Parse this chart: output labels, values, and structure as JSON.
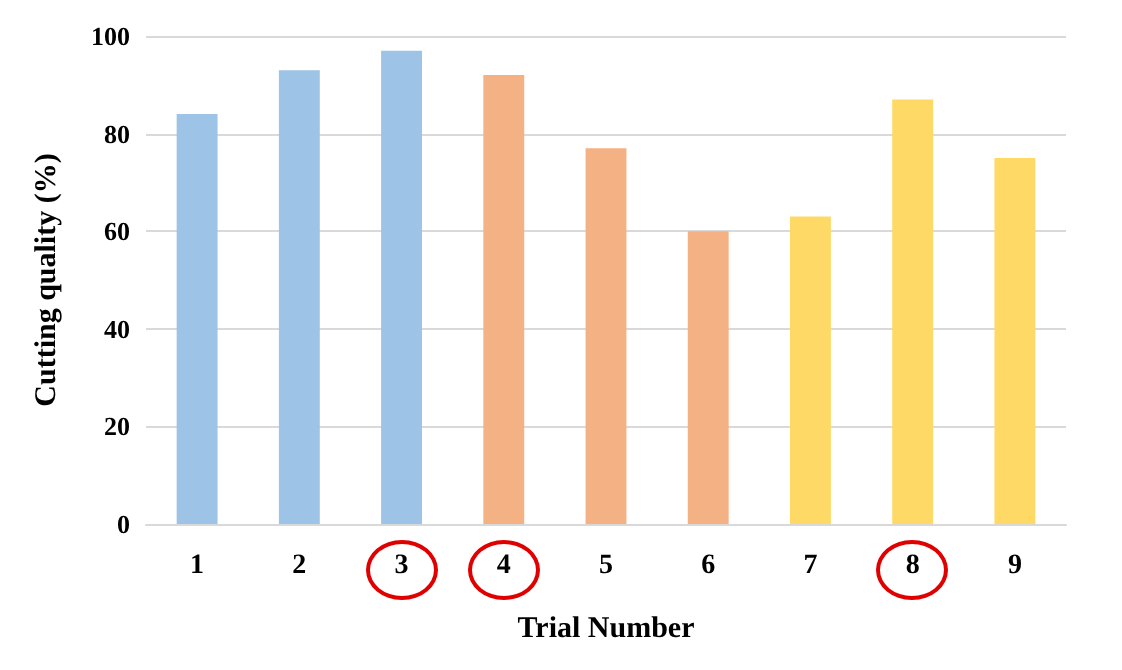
{
  "chart_data": {
    "type": "bar",
    "xlabel": "Trial Number",
    "ylabel": "Cutting quality (%)",
    "categories": [
      "1",
      "2",
      "3",
      "4",
      "5",
      "6",
      "7",
      "8",
      "9"
    ],
    "values": [
      84,
      93,
      97,
      92,
      77,
      60,
      63,
      87,
      75
    ],
    "colors": [
      "#9dc3e6",
      "#9dc3e6",
      "#9dc3e6",
      "#f4b183",
      "#f4b183",
      "#f4b183",
      "#ffd966",
      "#ffd966",
      "#ffd966"
    ],
    "ylim": [
      0,
      100
    ],
    "yticks": [
      0,
      20,
      40,
      60,
      80,
      100
    ],
    "grid": true
  }
}
